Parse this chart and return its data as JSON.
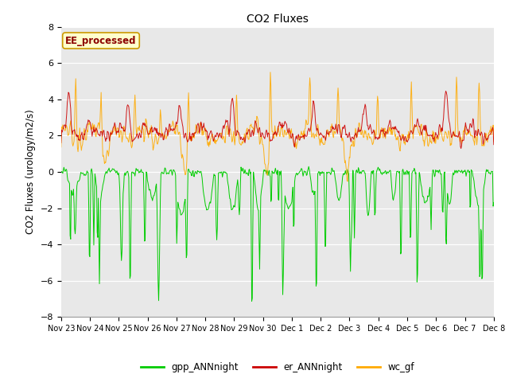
{
  "title": "CO2 Fluxes",
  "ylabel": "CO2 Fluxes (urology/m2/s)",
  "ylim": [
    -8,
    8
  ],
  "yticks": [
    -8,
    -6,
    -4,
    -2,
    0,
    2,
    4,
    6,
    8
  ],
  "annotation": "EE_processed",
  "bg_color": "#e8e8e8",
  "plot_bg_color": "#e8e8e8",
  "colors": {
    "gpp_ANNnight": "#00cc00",
    "er_ANNnight": "#cc0000",
    "wc_gf": "#ffaa00"
  },
  "legend_labels": [
    "gpp_ANNnight",
    "er_ANNnight",
    "wc_gf"
  ],
  "n_points": 768,
  "x_tick_labels": [
    "Nov 23",
    "Nov 24",
    "Nov 25",
    "Nov 26",
    "Nov 27",
    "Nov 28",
    "Nov 29",
    "Nov 30",
    "Dec 1",
    "Dec 2",
    "Dec 3",
    "Dec 4",
    "Dec 5",
    "Dec 6",
    "Dec 7",
    "Dec 8"
  ],
  "seed": 12345,
  "figsize": [
    6.4,
    4.8
  ],
  "dpi": 100
}
